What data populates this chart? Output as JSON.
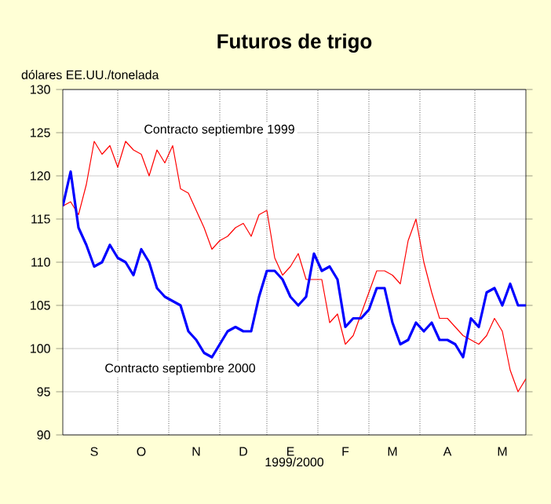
{
  "chart_data": {
    "type": "line",
    "title": "Futuros de trigo",
    "ylabel": "dólares EE.UU./tonelada",
    "xlabel": "1999/2000",
    "categories": [
      null,
      null,
      null,
      null,
      "S",
      null,
      null,
      null,
      null,
      null,
      "O",
      null,
      null,
      null,
      null,
      null,
      null,
      "N",
      null,
      null,
      null,
      null,
      null,
      "D",
      null,
      null,
      null,
      null,
      null,
      "E",
      null,
      null,
      null,
      null,
      null,
      null,
      "F",
      null,
      null,
      null,
      null,
      null,
      "M",
      null,
      null,
      null,
      null,
      null,
      null,
      "A",
      null,
      null,
      null,
      null,
      null,
      null,
      "M",
      null,
      null,
      null
    ],
    "ylim": [
      90,
      130
    ],
    "yticks": [
      90,
      95,
      100,
      105,
      110,
      115,
      120,
      125,
      130
    ],
    "grid": "y",
    "series": [
      {
        "name": "Contracto septiembre 1999",
        "color": "#ff0000",
        "values": [
          116.5,
          117,
          115.5,
          119,
          124,
          122.5,
          123.5,
          121,
          124,
          123,
          122.5,
          120,
          123,
          121.5,
          123.5,
          118.5,
          118,
          116,
          114,
          111.5,
          112.5,
          113,
          114,
          114.5,
          113,
          115.5,
          116,
          110.5,
          108.5,
          109.5,
          111,
          108,
          108,
          108,
          103,
          104,
          100.5,
          101.5,
          104,
          106.5,
          109,
          109,
          108.5,
          107.5,
          112.5,
          115,
          110,
          106.5,
          103.5,
          103.5,
          102.5,
          101.5,
          101,
          100.5,
          101.5,
          103.5,
          102,
          97.5,
          95,
          96.5
        ]
      },
      {
        "name": "Contracto septiembre 2000",
        "color": "#0000ff",
        "values": [
          116.5,
          120.5,
          114,
          112,
          109.5,
          110,
          112,
          110.5,
          110,
          108.5,
          111.5,
          110,
          107,
          106,
          105.5,
          105,
          102,
          101,
          99.5,
          99,
          100.5,
          102,
          102.5,
          102,
          102,
          106,
          109,
          109,
          108,
          106,
          105,
          106,
          111,
          109,
          109.5,
          108,
          102.5,
          103.5,
          103.5,
          104.5,
          107,
          107,
          103,
          100.5,
          101,
          103,
          102,
          103,
          101,
          101,
          100.5,
          99,
          103.5,
          102.5,
          106.5,
          107,
          105,
          107.5,
          105,
          105
        ]
      }
    ]
  }
}
